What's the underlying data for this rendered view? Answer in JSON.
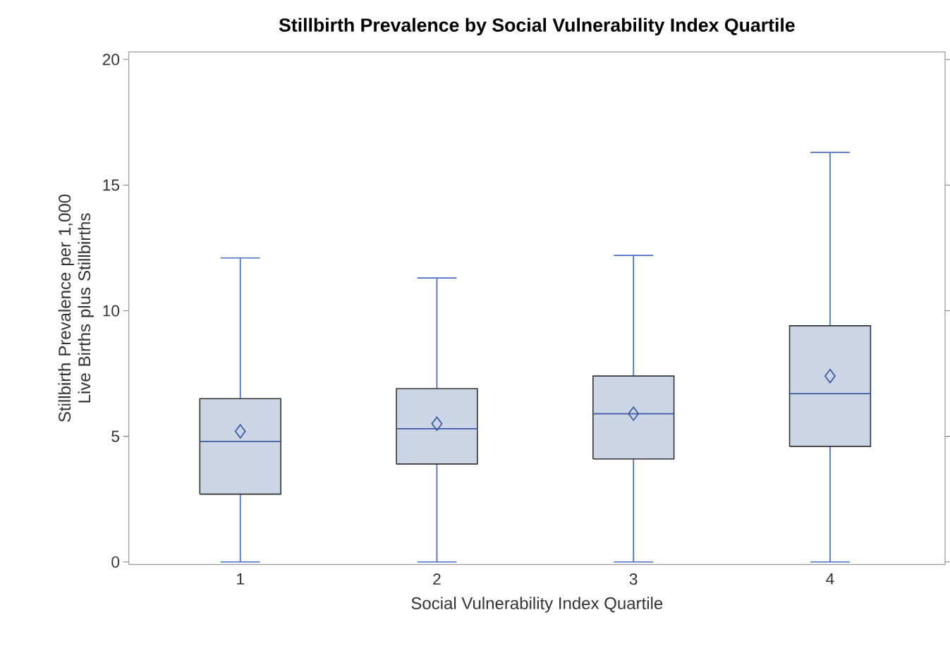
{
  "chart_data": {
    "type": "box",
    "title": "Stillbirth Prevalence by Social Vulnerability Index Quartile",
    "xlabel": "Social Vulnerability Index Quartile",
    "ylabel": "Stillbirth Prevalence per 1,000 Live Births plus Stillbirths",
    "categories": [
      "1",
      "2",
      "3",
      "4"
    ],
    "boxes": [
      {
        "low": 0,
        "q1": 2.7,
        "median": 4.8,
        "q3": 6.5,
        "high": 12.1,
        "mean": 5.2
      },
      {
        "low": 0,
        "q1": 3.9,
        "median": 5.3,
        "q3": 6.9,
        "high": 11.3,
        "mean": 5.5
      },
      {
        "low": 0,
        "q1": 4.1,
        "median": 5.9,
        "q3": 7.4,
        "high": 12.2,
        "mean": 5.9
      },
      {
        "low": 0,
        "q1": 4.6,
        "median": 6.7,
        "q3": 9.4,
        "high": 16.3,
        "mean": 7.4
      }
    ],
    "color": "#4a6ec8",
    "colors": [
      "#cbd5e6",
      "#cbd5e6",
      "#cbd5e6",
      "#cbd5e6"
    ],
    "marker": "diamond",
    "ylim": [
      -0.1,
      20.3
    ],
    "yticks": [
      0,
      5,
      10,
      15,
      20
    ]
  }
}
